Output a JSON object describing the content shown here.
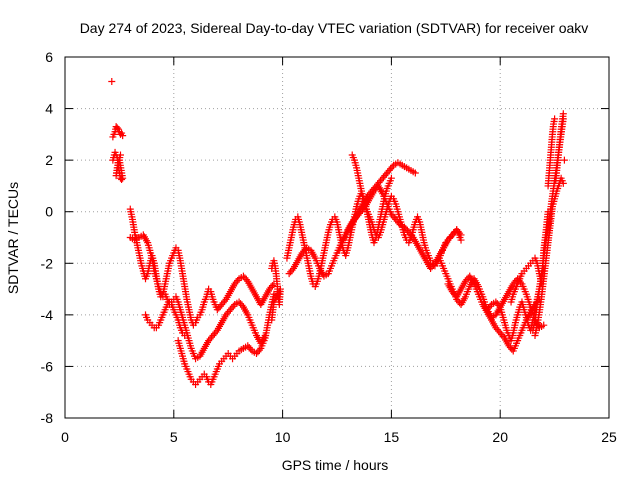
{
  "chart_data": {
    "type": "scatter",
    "title": "Day 274 of 2023, Sidereal Day-to-day VTEC variation (SDTVAR) for receiver oakv",
    "xlabel": "GPS time / hours",
    "ylabel": "SDTVAR / TECUs",
    "xlim": [
      0,
      25
    ],
    "ylim": [
      -8,
      6
    ],
    "xticks": [
      0,
      5,
      10,
      15,
      20,
      25
    ],
    "yticks": [
      -8,
      -6,
      -4,
      -2,
      0,
      2,
      4,
      6
    ],
    "grid": true,
    "marker": "+",
    "color": "#ff0000",
    "series": [
      {
        "x": [
          2.15,
          2.2,
          2.3,
          2.35,
          2.4,
          2.45,
          2.5,
          2.55,
          2.6,
          2.65
        ],
        "y": [
          5.05,
          2.9,
          3.1,
          3.3,
          3.25,
          3.2,
          3.1,
          3.0,
          3.05,
          2.95
        ]
      },
      {
        "x": [
          2.2,
          2.3,
          2.4,
          2.45,
          2.5,
          2.55,
          2.6,
          2.65,
          2.5,
          2.4,
          2.35,
          2.45,
          2.55
        ],
        "y": [
          2.0,
          2.3,
          2.1,
          1.8,
          1.5,
          1.3,
          1.25,
          1.3,
          2.0,
          1.7,
          1.4,
          1.9,
          2.2
        ]
      },
      {
        "x": [
          3.0,
          3.1,
          3.2,
          3.3,
          3.4,
          3.5,
          3.6,
          3.7,
          3.8,
          3.9,
          4.0,
          4.1,
          4.2,
          4.3,
          4.4,
          4.5,
          4.6,
          4.7,
          4.8,
          4.9,
          5.0,
          5.1,
          5.2,
          5.3,
          5.4,
          5.5,
          5.6,
          5.7,
          5.8,
          5.9,
          6.0,
          6.1,
          6.2,
          6.3,
          6.4,
          6.5,
          6.6,
          6.7,
          6.8,
          6.9,
          7.0,
          7.2,
          7.4,
          7.6,
          7.8,
          8.0,
          8.2,
          8.4,
          8.6,
          8.8,
          9.0,
          9.2,
          9.4,
          9.6
        ],
        "y": [
          0.1,
          -0.3,
          -0.8,
          -1.2,
          -1.6,
          -2.0,
          -2.3,
          -2.6,
          -2.4,
          -2.0,
          -1.7,
          -2.0,
          -2.5,
          -3.0,
          -3.3,
          -3.2,
          -2.8,
          -2.4,
          -2.0,
          -1.8,
          -1.6,
          -1.4,
          -1.5,
          -1.9,
          -2.4,
          -2.9,
          -3.4,
          -3.8,
          -4.2,
          -4.4,
          -4.3,
          -4.1,
          -4.0,
          -3.8,
          -3.5,
          -3.3,
          -3.0,
          -3.1,
          -3.4,
          -3.6,
          -3.8,
          -3.6,
          -3.4,
          -3.1,
          -2.8,
          -2.6,
          -2.5,
          -2.7,
          -3.0,
          -3.3,
          -3.6,
          -3.3,
          -3.0,
          -2.8
        ]
      },
      {
        "x": [
          3.0,
          3.2,
          3.4,
          3.6,
          3.8,
          4.0,
          4.1,
          4.2,
          4.3,
          4.4,
          4.5,
          4.6,
          4.7,
          4.8,
          4.9,
          5.0,
          5.1,
          5.2,
          5.3,
          5.4,
          5.5,
          5.6,
          5.7,
          5.8,
          5.9,
          6.0,
          6.2,
          6.4,
          6.6,
          6.8,
          7.0,
          7.2,
          7.4,
          7.6,
          7.8,
          8.0,
          8.2,
          8.4,
          8.6,
          8.8,
          9.0,
          9.2
        ],
        "y": [
          -1.0,
          -1.1,
          -1.0,
          -0.9,
          -1.2,
          -1.8,
          -2.3,
          -2.6,
          -2.9,
          -3.1,
          -3.3,
          -3.2,
          -3.4,
          -3.6,
          -3.5,
          -3.4,
          -3.3,
          -3.5,
          -3.8,
          -4.1,
          -4.4,
          -4.7,
          -5.0,
          -5.3,
          -5.5,
          -5.7,
          -5.6,
          -5.3,
          -5.0,
          -4.8,
          -4.6,
          -4.3,
          -4.0,
          -3.8,
          -3.6,
          -3.5,
          -3.7,
          -4.0,
          -4.4,
          -4.8,
          -5.1,
          -4.8
        ]
      },
      {
        "x": [
          3.7,
          3.8,
          3.9,
          4.0,
          4.1,
          4.2,
          4.3,
          4.4,
          4.5,
          4.6,
          4.7,
          4.8,
          4.9,
          5.0,
          5.1,
          5.2,
          5.3,
          5.4,
          5.5
        ],
        "y": [
          -4.0,
          -4.2,
          -4.3,
          -4.4,
          -4.5,
          -4.5,
          -4.4,
          -4.2,
          -4.0,
          -3.8,
          -3.6,
          -3.5,
          -3.6,
          -3.8,
          -4.0,
          -4.2,
          -4.5,
          -4.7,
          -4.8
        ]
      },
      {
        "x": [
          5.2,
          5.3,
          5.4,
          5.5,
          5.6,
          5.7,
          5.8,
          5.9,
          6.0,
          6.1,
          6.2,
          6.3,
          6.4,
          6.5,
          6.6,
          6.7,
          6.8,
          6.9,
          7.0,
          7.1,
          7.2,
          7.3,
          7.4,
          7.5,
          7.6,
          7.7,
          7.8,
          7.9,
          8.0,
          8.2,
          8.4,
          8.6,
          8.8,
          9.0,
          9.2,
          9.4,
          9.6
        ],
        "y": [
          -5.0,
          -5.3,
          -5.6,
          -5.9,
          -6.1,
          -6.3,
          -6.5,
          -6.6,
          -6.7,
          -6.6,
          -6.5,
          -6.4,
          -6.3,
          -6.4,
          -6.6,
          -6.7,
          -6.5,
          -6.3,
          -6.1,
          -5.9,
          -5.8,
          -5.7,
          -5.6,
          -5.5,
          -5.6,
          -5.7,
          -5.6,
          -5.5,
          -5.4,
          -5.3,
          -5.2,
          -5.4,
          -5.5,
          -5.3,
          -4.9,
          -4.0,
          -3.2
        ]
      },
      {
        "x": [
          9.5,
          9.55,
          9.6,
          9.65,
          9.7,
          9.75,
          9.8,
          9.85,
          9.9,
          9.6,
          9.5
        ],
        "y": [
          -2.2,
          -2.0,
          -1.9,
          -2.1,
          -2.4,
          -2.8,
          -3.3,
          -3.6,
          -3.0,
          -3.5,
          -4.2
        ]
      },
      {
        "x": [
          10.2,
          10.3,
          10.4,
          10.5,
          10.6,
          10.7,
          10.8,
          10.9,
          11.0,
          11.1,
          11.2,
          11.3,
          11.4,
          11.5,
          11.6,
          11.7,
          11.8,
          11.9,
          12.0,
          12.1,
          12.2,
          12.3,
          12.4,
          12.5,
          12.6,
          12.7,
          12.8,
          12.9,
          13.0,
          13.1,
          13.2,
          13.3,
          13.4,
          13.5,
          13.6,
          13.7,
          13.8,
          13.9,
          14.0,
          14.1,
          14.2,
          14.3,
          14.4,
          14.5,
          14.6,
          14.7,
          14.8,
          14.9,
          15.0
        ],
        "y": [
          -1.8,
          -1.4,
          -1.0,
          -0.6,
          -0.3,
          -0.2,
          -0.5,
          -0.9,
          -1.3,
          -1.7,
          -2.1,
          -2.5,
          -2.8,
          -2.9,
          -2.7,
          -2.4,
          -2.0,
          -1.6,
          -1.2,
          -0.8,
          -0.5,
          -0.3,
          -0.2,
          -0.4,
          -0.8,
          -1.2,
          -1.5,
          -1.7,
          -1.4,
          -1.0,
          -0.6,
          -0.2,
          0.2,
          0.5,
          0.7,
          0.6,
          0.3,
          -0.1,
          -0.5,
          -0.9,
          -1.2,
          -1.0,
          -0.6,
          -0.2,
          0.2,
          0.6,
          0.9,
          1.1,
          1.3
        ]
      },
      {
        "x": [
          10.3,
          10.5,
          10.7,
          10.9,
          11.1,
          11.3,
          11.5,
          11.7,
          11.9,
          12.1,
          12.3,
          12.5,
          12.7,
          12.9,
          13.1,
          13.3,
          13.5,
          13.7,
          13.9,
          14.1,
          14.3,
          14.5,
          14.7,
          14.9,
          15.1,
          15.3,
          15.5,
          15.7,
          15.9,
          16.1
        ],
        "y": [
          -2.4,
          -2.2,
          -1.9,
          -1.6,
          -1.4,
          -1.5,
          -1.8,
          -2.2,
          -2.5,
          -2.4,
          -2.0,
          -1.6,
          -1.2,
          -0.9,
          -0.6,
          -0.3,
          0.0,
          0.3,
          0.6,
          0.8,
          1.0,
          1.2,
          1.4,
          1.6,
          1.8,
          1.9,
          1.8,
          1.7,
          1.6,
          1.5
        ]
      },
      {
        "x": [
          13.2,
          13.3,
          13.4,
          13.5,
          13.6,
          13.7,
          13.8,
          13.9,
          14.0,
          14.1,
          14.2,
          14.3,
          14.4,
          14.5,
          14.6,
          14.7,
          14.8,
          14.9,
          15.0,
          15.1,
          15.2,
          15.3,
          15.4,
          15.5,
          15.6,
          15.7,
          15.8,
          15.9,
          16.0,
          16.1,
          16.2,
          16.3,
          16.4,
          16.5,
          16.6,
          16.7,
          16.8,
          16.9,
          17.0,
          17.1,
          17.2,
          17.3,
          17.4,
          17.5,
          17.6,
          17.7,
          17.8,
          17.9,
          18.0,
          18.1,
          18.2
        ],
        "y": [
          2.2,
          2.0,
          1.7,
          1.3,
          0.9,
          0.5,
          0.2,
          0.0,
          -0.2,
          -0.4,
          -0.7,
          -0.9,
          -1.0,
          -0.8,
          -0.5,
          -0.2,
          0.1,
          0.4,
          0.6,
          0.5,
          0.3,
          0.0,
          -0.3,
          -0.6,
          -0.9,
          -1.1,
          -1.2,
          -1.0,
          -0.7,
          -0.4,
          -0.2,
          -0.4,
          -0.8,
          -1.2,
          -1.5,
          -1.7,
          -1.9,
          -2.0,
          -2.1,
          -2.0,
          -1.8,
          -1.6,
          -1.4,
          -1.2,
          -1.1,
          -1.0,
          -0.9,
          -0.8,
          -0.7,
          -0.9,
          -1.1
        ]
      },
      {
        "x": [
          12.6,
          12.8,
          13.0,
          13.2,
          13.4,
          13.6,
          13.8,
          14.0,
          14.2,
          14.4,
          14.6,
          14.8,
          15.0,
          15.2,
          15.4,
          15.6,
          15.8,
          16.0,
          16.2,
          16.4,
          16.6,
          16.8,
          17.0,
          17.2,
          17.4,
          17.6,
          17.8,
          18.0,
          18.2
        ],
        "y": [
          -1.5,
          -1.1,
          -0.7,
          -0.4,
          -0.2,
          0.0,
          0.2,
          0.5,
          0.8,
          1.0,
          0.7,
          0.3,
          -0.1,
          -0.3,
          -0.5,
          -0.6,
          -0.8,
          -1.0,
          -1.3,
          -1.6,
          -1.9,
          -2.2,
          -2.0,
          -1.7,
          -1.4,
          -1.1,
          -0.9,
          -0.7,
          -0.9
        ]
      },
      {
        "x": [
          17.2,
          17.4,
          17.6,
          17.8,
          18.0,
          18.2,
          18.4,
          18.6,
          18.8,
          19.0,
          19.2,
          19.4,
          19.6,
          19.8,
          20.0,
          20.2,
          20.4,
          20.6,
          20.8,
          21.0,
          21.2,
          21.4,
          21.6,
          21.8,
          22.0
        ],
        "y": [
          -1.8,
          -2.2,
          -2.6,
          -3.0,
          -3.4,
          -3.6,
          -3.3,
          -2.9,
          -2.6,
          -2.9,
          -3.3,
          -3.8,
          -4.1,
          -4.0,
          -3.7,
          -3.4,
          -3.1,
          -2.8,
          -2.6,
          -2.8,
          -3.2,
          -3.7,
          -4.2,
          -4.5,
          -4.4
        ]
      },
      {
        "x": [
          17.6,
          17.8,
          18.0,
          18.2,
          18.4,
          18.6,
          18.8,
          19.0,
          19.2,
          19.4,
          19.6,
          19.8,
          20.0,
          20.2,
          20.4,
          20.6,
          20.8,
          21.0,
          21.2,
          21.4,
          21.6,
          21.8
        ],
        "y": [
          -2.8,
          -3.1,
          -3.3,
          -3.0,
          -2.7,
          -2.5,
          -2.8,
          -3.2,
          -3.6,
          -3.9,
          -4.2,
          -4.5,
          -4.7,
          -4.9,
          -5.2,
          -5.4,
          -5.0,
          -4.6,
          -4.2,
          -3.9,
          -3.6,
          -3.4
        ]
      },
      {
        "x": [
          19.4,
          19.6,
          19.8,
          20.0,
          20.1,
          20.2,
          20.3,
          20.4,
          20.5,
          20.6,
          20.7,
          20.8,
          20.9,
          21.0,
          21.1,
          21.2,
          21.3,
          21.4,
          21.5,
          21.6,
          21.7,
          21.8,
          21.9,
          22.0
        ],
        "y": [
          -3.8,
          -3.6,
          -3.5,
          -3.7,
          -4.0,
          -4.3,
          -4.6,
          -4.8,
          -5.0,
          -4.7,
          -4.3,
          -4.0,
          -3.7,
          -3.5,
          -3.8,
          -4.1,
          -4.4,
          -4.6,
          -4.2,
          -3.8,
          -3.4,
          -3.0,
          -2.6,
          -2.2
        ]
      },
      {
        "x": [
          20.5,
          20.6,
          20.7,
          20.8,
          20.9,
          21.0,
          21.1,
          21.2,
          21.3,
          21.4,
          21.5,
          21.6,
          21.7,
          21.8,
          21.9,
          22.0,
          22.1,
          22.2
        ],
        "y": [
          -3.5,
          -3.2,
          -3.0,
          -2.8,
          -2.6,
          -2.4,
          -2.3,
          -2.2,
          -2.1,
          -2.0,
          -1.9,
          -1.8,
          -2.0,
          -2.4,
          -2.8,
          -1.5,
          -0.8,
          0.0
        ]
      },
      {
        "x": [
          21.5,
          21.6,
          21.7,
          21.8,
          21.9,
          22.0,
          22.1,
          22.2,
          22.3,
          22.4,
          22.5,
          22.6,
          22.7,
          22.8,
          22.9
        ],
        "y": [
          -4.6,
          -4.2,
          -3.6,
          -3.0,
          -2.4,
          -1.8,
          -1.2,
          -0.6,
          0.0,
          0.6,
          1.2,
          1.8,
          2.4,
          3.0,
          3.6
        ]
      },
      {
        "x": [
          22.2,
          22.25,
          22.3,
          22.35,
          22.4,
          22.45,
          22.5,
          22.55,
          22.6,
          22.65,
          22.7,
          22.75,
          22.8,
          22.85,
          22.9,
          22.95
        ],
        "y": [
          1.0,
          1.5,
          2.0,
          2.5,
          3.0,
          3.4,
          3.6,
          1.2,
          1.6,
          2.0,
          2.4,
          2.8,
          3.2,
          3.5,
          3.8,
          2.0
        ]
      },
      {
        "x": [
          21.6,
          21.7,
          21.8,
          21.9,
          22.0,
          22.1,
          22.2,
          22.4,
          22.6,
          22.8,
          22.9
        ],
        "y": [
          -4.8,
          -4.4,
          -3.9,
          -3.3,
          -2.6,
          -1.9,
          -1.2,
          0.2,
          0.8,
          1.3,
          1.1
        ]
      }
    ]
  }
}
